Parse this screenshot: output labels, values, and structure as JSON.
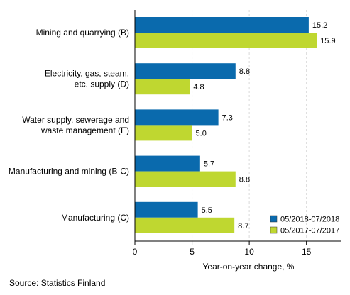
{
  "chart_data": {
    "type": "bar",
    "orientation": "horizontal",
    "categories": [
      [
        "Mining and quarrying (B)"
      ],
      [
        "Electricity, gas, steam,",
        "etc. supply (D)"
      ],
      [
        "Water supply, sewerage and",
        "waste management (E)"
      ],
      [
        "Manufacturing and mining (B-C)"
      ],
      [
        "Manufacturing (C)"
      ]
    ],
    "series": [
      {
        "name": "05/2018-07/2018",
        "color": "#0a6aad",
        "values": [
          15.2,
          8.8,
          7.3,
          5.7,
          5.5
        ]
      },
      {
        "name": "05/2017-07/2017",
        "color": "#bfd730",
        "values": [
          15.9,
          4.8,
          5.0,
          8.8,
          8.7
        ]
      }
    ],
    "xlabel": "Year-on-year change, %",
    "xlim": [
      0,
      18
    ],
    "xticks": [
      0,
      5,
      10,
      15
    ],
    "grid": true,
    "legend_position": "bottom-right"
  },
  "source": "Source: Statistics Finland"
}
